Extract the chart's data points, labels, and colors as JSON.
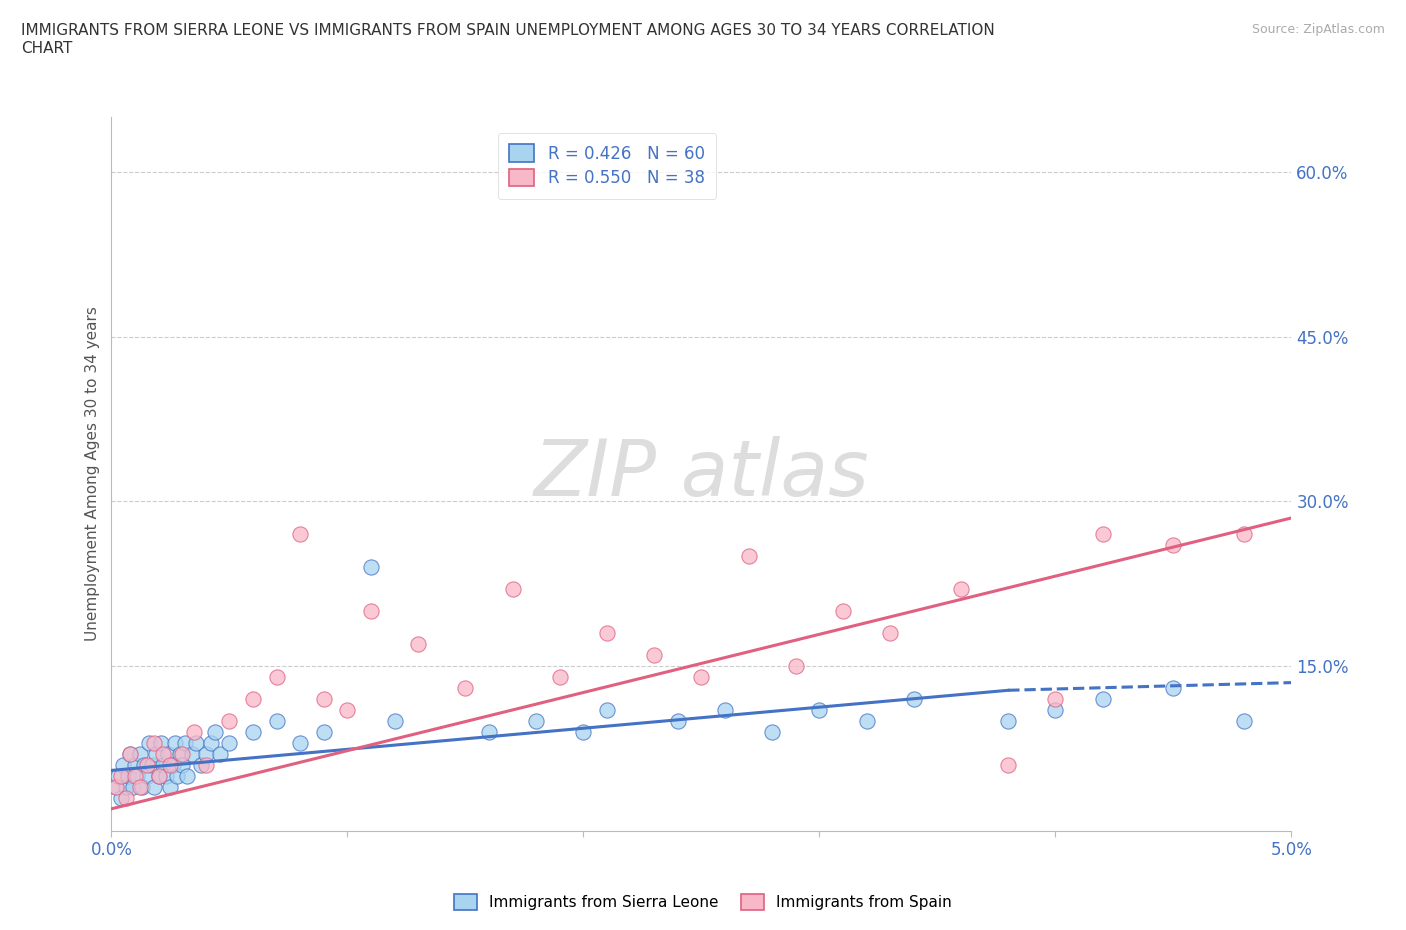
{
  "title": "IMMIGRANTS FROM SIERRA LEONE VS IMMIGRANTS FROM SPAIN UNEMPLOYMENT AMONG AGES 30 TO 34 YEARS CORRELATION\nCHART",
  "source_text": "Source: ZipAtlas.com",
  "ylabel": "Unemployment Among Ages 30 to 34 years",
  "xlim": [
    0.0,
    0.05
  ],
  "ylim": [
    0.0,
    0.65
  ],
  "xticks": [
    0.0,
    0.01,
    0.02,
    0.03,
    0.04,
    0.05
  ],
  "xticklabels": [
    "0.0%",
    "",
    "",
    "",
    "",
    "5.0%"
  ],
  "ytick_positions": [
    0.0,
    0.15,
    0.3,
    0.45,
    0.6
  ],
  "yticklabels": [
    "",
    "15.0%",
    "30.0%",
    "45.0%",
    "60.0%"
  ],
  "legend_r1": "R = 0.426",
  "legend_n1": "N = 60",
  "legend_r2": "R = 0.550",
  "legend_n2": "N = 38",
  "color_sierra": "#a8d4f0",
  "color_spain": "#f9b8c8",
  "color_line_sierra": "#4472c4",
  "color_line_spain": "#e06080",
  "color_text_blue": "#4472c4",
  "sierra_leone_x": [
    0.0002,
    0.0003,
    0.0004,
    0.0005,
    0.0006,
    0.0007,
    0.0008,
    0.0009,
    0.001,
    0.0011,
    0.0012,
    0.0013,
    0.0014,
    0.0015,
    0.0016,
    0.0017,
    0.0018,
    0.0019,
    0.002,
    0.0021,
    0.0022,
    0.0023,
    0.0024,
    0.0025,
    0.0026,
    0.0027,
    0.0028,
    0.0029,
    0.003,
    0.0031,
    0.0032,
    0.0034,
    0.0036,
    0.0038,
    0.004,
    0.0042,
    0.0044,
    0.0046,
    0.005,
    0.006,
    0.007,
    0.008,
    0.009,
    0.011,
    0.012,
    0.016,
    0.018,
    0.02,
    0.021,
    0.024,
    0.026,
    0.028,
    0.03,
    0.032,
    0.034,
    0.038,
    0.04,
    0.042,
    0.045,
    0.048
  ],
  "sierra_leone_y": [
    0.04,
    0.05,
    0.03,
    0.06,
    0.04,
    0.05,
    0.07,
    0.04,
    0.06,
    0.05,
    0.07,
    0.04,
    0.06,
    0.05,
    0.08,
    0.06,
    0.04,
    0.07,
    0.05,
    0.08,
    0.06,
    0.05,
    0.07,
    0.04,
    0.06,
    0.08,
    0.05,
    0.07,
    0.06,
    0.08,
    0.05,
    0.07,
    0.08,
    0.06,
    0.07,
    0.08,
    0.09,
    0.07,
    0.08,
    0.09,
    0.1,
    0.08,
    0.09,
    0.24,
    0.1,
    0.09,
    0.1,
    0.09,
    0.11,
    0.1,
    0.11,
    0.09,
    0.11,
    0.1,
    0.12,
    0.1,
    0.11,
    0.12,
    0.13,
    0.1
  ],
  "spain_x": [
    0.0002,
    0.0004,
    0.0006,
    0.0008,
    0.001,
    0.0012,
    0.0015,
    0.0018,
    0.002,
    0.0022,
    0.0025,
    0.003,
    0.0035,
    0.004,
    0.005,
    0.006,
    0.007,
    0.008,
    0.009,
    0.01,
    0.011,
    0.013,
    0.015,
    0.017,
    0.019,
    0.021,
    0.023,
    0.025,
    0.027,
    0.029,
    0.031,
    0.033,
    0.036,
    0.038,
    0.04,
    0.042,
    0.045,
    0.048
  ],
  "spain_y": [
    0.04,
    0.05,
    0.03,
    0.07,
    0.05,
    0.04,
    0.06,
    0.08,
    0.05,
    0.07,
    0.06,
    0.07,
    0.09,
    0.06,
    0.1,
    0.12,
    0.14,
    0.27,
    0.12,
    0.11,
    0.2,
    0.17,
    0.13,
    0.22,
    0.14,
    0.18,
    0.16,
    0.14,
    0.25,
    0.15,
    0.2,
    0.18,
    0.22,
    0.06,
    0.12,
    0.27,
    0.26,
    0.27
  ],
  "regression_sierra_x0": 0.0,
  "regression_sierra_y0": 0.055,
  "regression_sierra_x1": 0.05,
  "regression_sierra_y1": 0.135,
  "regression_spain_x0": 0.0,
  "regression_spain_y0": 0.02,
  "regression_spain_x1": 0.05,
  "regression_spain_y1": 0.285
}
